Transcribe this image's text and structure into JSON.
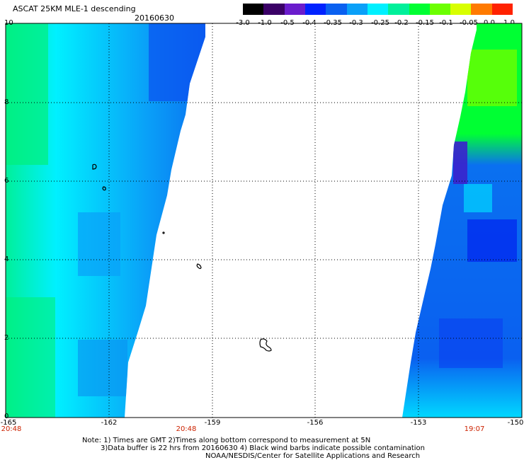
{
  "header": {
    "title": "ASCAT 25KM MLE-1 descending",
    "date": "20160630"
  },
  "colorbar": {
    "labels": [
      "-3.0",
      "-1.0",
      "-0.5",
      "-0.4",
      "-0.35",
      "-0.3",
      "-0.25",
      "-0.2",
      "-0.15",
      "-0.1",
      "-0.05",
      "0.0",
      "1.0"
    ],
    "colors": [
      "#000000",
      "#3a0066",
      "#6a1ccc",
      "#0022ff",
      "#0a60f0",
      "#0aa0f8",
      "#00f0ff",
      "#00f09a",
      "#00ff33",
      "#6cff00",
      "#d8ff00",
      "#ff7a00",
      "#ff2200"
    ]
  },
  "map": {
    "lon_range": [
      -165,
      -150
    ],
    "lat_range": [
      0,
      10
    ],
    "x_tick_labels": [
      "-165",
      "-162",
      "-159",
      "-156",
      "-153",
      "-150"
    ],
    "y_tick_labels": [
      "0",
      "2",
      "4",
      "6",
      "8",
      "10"
    ],
    "time_labels": [
      "20:48",
      "20:48",
      "19:07"
    ]
  },
  "notes": {
    "line1": "Note: 1) Times are GMT 2)Times along bottom correspond to measurement at 5N",
    "line2": "3)Data buffer is 22 hrs from 20160630 4) Black wind barbs indicate possible contamination",
    "line3": "NOAA/NESDIS/Center for Satellite Applications and Research"
  }
}
